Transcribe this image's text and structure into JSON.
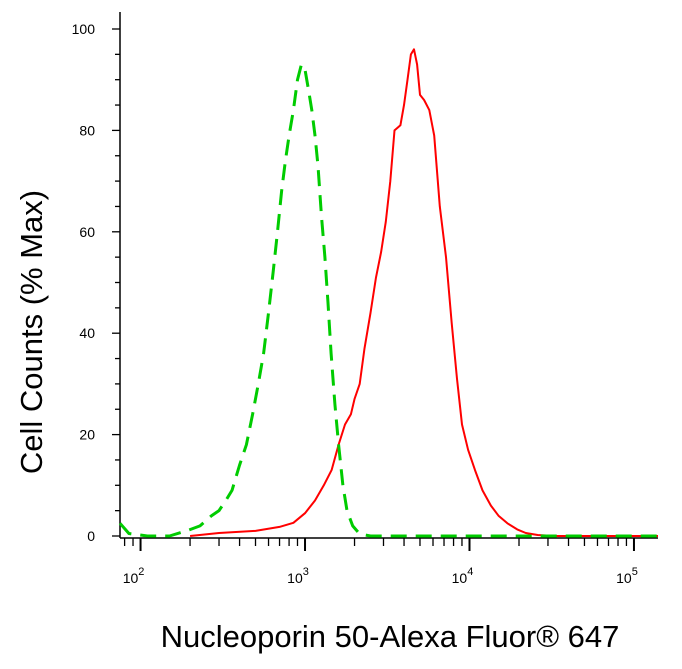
{
  "chart_data": {
    "type": "line",
    "title": "",
    "xlabel": "Nucleoporin 50-Alexa Fluor® 647",
    "ylabel": "Cell Counts (% Max)",
    "x_scale": "log",
    "xlim": [
      75,
      140000
    ],
    "ylim": [
      0,
      105
    ],
    "x_ticks": [
      {
        "value": 100,
        "base": "10",
        "exp": "2"
      },
      {
        "value": 1000,
        "base": "10",
        "exp": "3"
      },
      {
        "value": 10000,
        "base": "10",
        "exp": "4"
      },
      {
        "value": 100000,
        "base": "10",
        "exp": "5"
      }
    ],
    "y_ticks": [
      0,
      20,
      40,
      60,
      80,
      100
    ],
    "grid": false,
    "series": [
      {
        "color": "#ff0000",
        "style": "solid",
        "points": [
          [
            200,
            0
          ],
          [
            300,
            0.6
          ],
          [
            500,
            1
          ],
          [
            700,
            1.8
          ],
          [
            850,
            2.6
          ],
          [
            1000,
            4.5
          ],
          [
            1150,
            7
          ],
          [
            1300,
            10
          ],
          [
            1450,
            13
          ],
          [
            1600,
            18
          ],
          [
            1750,
            22
          ],
          [
            1900,
            24
          ],
          [
            2000,
            27
          ],
          [
            2150,
            30
          ],
          [
            2300,
            37
          ],
          [
            2500,
            44
          ],
          [
            2700,
            51
          ],
          [
            2900,
            56
          ],
          [
            3100,
            62
          ],
          [
            3300,
            70
          ],
          [
            3500,
            80
          ],
          [
            3800,
            81
          ],
          [
            4000,
            85
          ],
          [
            4200,
            90
          ],
          [
            4400,
            95
          ],
          [
            4600,
            96
          ],
          [
            4800,
            93
          ],
          [
            5000,
            87
          ],
          [
            5300,
            86
          ],
          [
            5700,
            84
          ],
          [
            6100,
            79
          ],
          [
            6600,
            65
          ],
          [
            7200,
            55
          ],
          [
            7800,
            42
          ],
          [
            8400,
            31
          ],
          [
            9000,
            22
          ],
          [
            9800,
            17
          ],
          [
            10800,
            13
          ],
          [
            12000,
            9
          ],
          [
            13500,
            6
          ],
          [
            15000,
            4
          ],
          [
            17000,
            2.5
          ],
          [
            19500,
            1.3
          ],
          [
            22000,
            0.6
          ],
          [
            26000,
            0.2
          ],
          [
            33000,
            0
          ],
          [
            60000,
            0
          ],
          [
            140000,
            0
          ]
        ]
      },
      {
        "color": "#00cc00",
        "style": "dashed",
        "points": [
          [
            75,
            2.5
          ],
          [
            85,
            0.5
          ],
          [
            110,
            0
          ],
          [
            150,
            0
          ],
          [
            190,
            1
          ],
          [
            230,
            2
          ],
          [
            270,
            4
          ],
          [
            300,
            5
          ],
          [
            330,
            7
          ],
          [
            360,
            9
          ],
          [
            400,
            14
          ],
          [
            440,
            18
          ],
          [
            480,
            24
          ],
          [
            520,
            30
          ],
          [
            560,
            36
          ],
          [
            600,
            44
          ],
          [
            640,
            52
          ],
          [
            680,
            60
          ],
          [
            720,
            68
          ],
          [
            760,
            74
          ],
          [
            800,
            79
          ],
          [
            850,
            84
          ],
          [
            900,
            90
          ],
          [
            950,
            93
          ],
          [
            1000,
            92
          ],
          [
            1050,
            88
          ],
          [
            1100,
            84
          ],
          [
            1150,
            79
          ],
          [
            1200,
            73
          ],
          [
            1260,
            63
          ],
          [
            1320,
            55
          ],
          [
            1380,
            46
          ],
          [
            1440,
            36
          ],
          [
            1520,
            26
          ],
          [
            1600,
            18
          ],
          [
            1700,
            10
          ],
          [
            1800,
            5
          ],
          [
            1950,
            2
          ],
          [
            2150,
            0.4
          ],
          [
            2500,
            0
          ],
          [
            10000,
            0
          ],
          [
            30000,
            0
          ],
          [
            140000,
            0
          ]
        ]
      }
    ]
  }
}
